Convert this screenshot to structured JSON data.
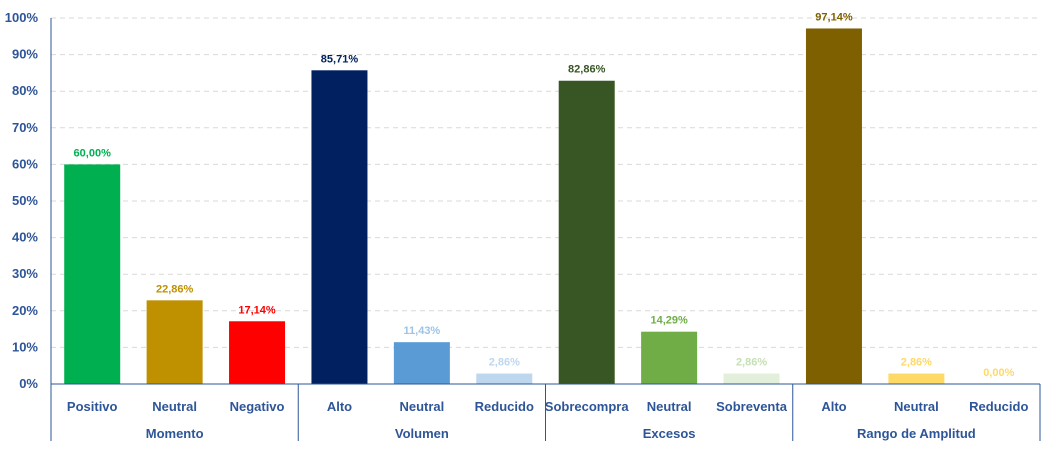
{
  "chart_data": {
    "type": "bar",
    "ylim": [
      0,
      100
    ],
    "yticks": [
      "0%",
      "10%",
      "20%",
      "30%",
      "40%",
      "50%",
      "60%",
      "70%",
      "80%",
      "90%",
      "100%"
    ],
    "grid": true,
    "groups": [
      {
        "name": "Momento",
        "bars": [
          {
            "category": "Positivo",
            "value": 60.0,
            "label": "60,00%",
            "color": "#00B050",
            "label_color": "#00B050"
          },
          {
            "category": "Neutral",
            "value": 22.86,
            "label": "22,86%",
            "color": "#BF9000",
            "label_color": "#BF9000"
          },
          {
            "category": "Negativo",
            "value": 17.14,
            "label": "17,14%",
            "color": "#FF0000",
            "label_color": "#FF0000"
          }
        ]
      },
      {
        "name": "Volumen",
        "bars": [
          {
            "category": "Alto",
            "value": 85.71,
            "label": "85,71%",
            "color": "#002060",
            "label_color": "#002060"
          },
          {
            "category": "Neutral",
            "value": 11.43,
            "label": "11,43%",
            "color": "#5B9BD5",
            "label_color": "#9DC3E6"
          },
          {
            "category": "Reducido",
            "value": 2.86,
            "label": "2,86%",
            "color": "#BDD7EE",
            "label_color": "#BDD7EE"
          }
        ]
      },
      {
        "name": "Excesos",
        "bars": [
          {
            "category": "Sobrecompra",
            "value": 82.86,
            "label": "82,86%",
            "color": "#375623",
            "label_color": "#375623"
          },
          {
            "category": "Neutral",
            "value": 14.29,
            "label": "14,29%",
            "color": "#70AD47",
            "label_color": "#70AD47"
          },
          {
            "category": "Sobreventa",
            "value": 2.86,
            "label": "2,86%",
            "color": "#E2EFDA",
            "label_color": "#C5E0B4"
          }
        ]
      },
      {
        "name": "Rango de Amplitud",
        "bars": [
          {
            "category": "Alto",
            "value": 97.14,
            "label": "97,14%",
            "color": "#7F6000",
            "label_color": "#7F6000"
          },
          {
            "category": "Neutral",
            "value": 2.86,
            "label": "2,86%",
            "color": "#FFD966",
            "label_color": "#FFD966"
          },
          {
            "category": "Reducido",
            "value": 0.0,
            "label": "0,00%",
            "color": "#FFE699",
            "label_color": "#FFD966"
          }
        ]
      }
    ]
  }
}
